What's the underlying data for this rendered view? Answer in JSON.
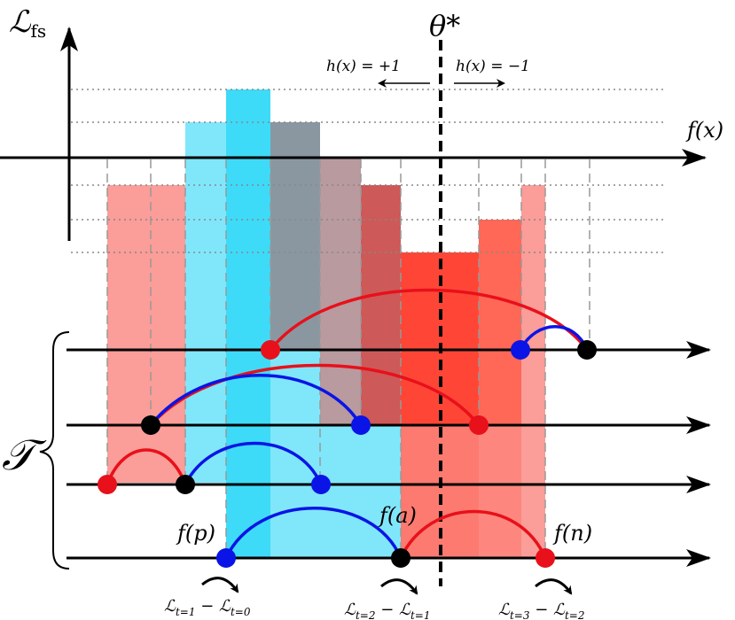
{
  "axis": {
    "y_label": {
      "symbol": "ℒ",
      "sub": "fs"
    },
    "x_label": "f(x)"
  },
  "threshold": {
    "label": "θ*"
  },
  "regions": {
    "left": "h(x) = +1",
    "right": "h(x) = −1"
  },
  "triplets": {
    "label": "𝒯"
  },
  "points": {
    "p": "f(p)",
    "a": "f(a)",
    "n": "f(n)"
  },
  "transitions": [
    {
      "symbol": "ℒ",
      "t1": "t=1",
      "minus": " − ℒ",
      "t2": "t=0"
    },
    {
      "symbol": "ℒ",
      "t1": "t=2",
      "minus": " − ℒ",
      "t2": "t=1"
    },
    {
      "symbol": "ℒ",
      "t1": "t=3",
      "minus": " − ℒ",
      "t2": "t=2"
    }
  ]
}
